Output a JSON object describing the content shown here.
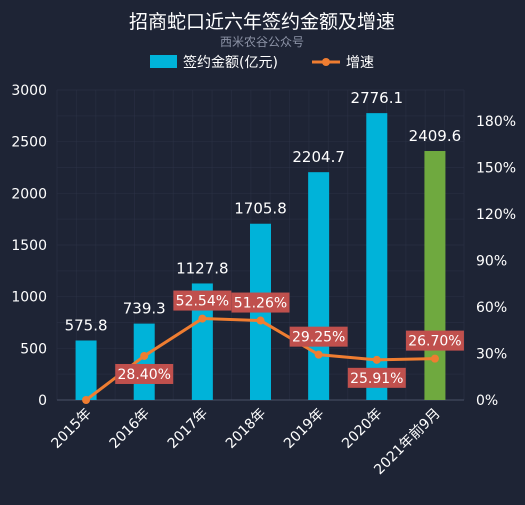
{
  "chart_data": {
    "type": "bar",
    "title": "招商蛇口近六年签约金额及增速",
    "subtitle": "西米农谷公众号",
    "categories": [
      "2015年",
      "2016年",
      "2017年",
      "2018年",
      "2019年",
      "2020年",
      "2021年前9月"
    ],
    "series": [
      {
        "name": "签约金额(亿元)",
        "type": "bar",
        "axis": "left",
        "values": [
          575.8,
          739.3,
          1127.8,
          1705.8,
          2204.7,
          2776.1,
          2409.6
        ],
        "value_labels": [
          "575.8",
          "739.3",
          "1127.8",
          "1705.8",
          "2204.7",
          "2776.1",
          "2409.6"
        ],
        "color": "#00b3d9",
        "highlight_color": "#6fa93f",
        "highlight_index": 6
      },
      {
        "name": "增速",
        "type": "line",
        "axis": "right",
        "values": [
          0,
          28.4,
          52.54,
          51.26,
          29.25,
          25.91,
          26.7
        ],
        "value_labels": [
          null,
          "28.40%",
          "52.54%",
          "51.26%",
          "29.25%",
          "25.91%",
          "26.70%"
        ],
        "color": "#ef7d31",
        "label_bg": "#c0504d"
      }
    ],
    "y_left": {
      "min": 0,
      "max": 3000,
      "ticks": [
        "0",
        "500",
        "1000",
        "1500",
        "2000",
        "2500",
        "3000"
      ]
    },
    "y_right": {
      "min": 0,
      "max": 200,
      "ticks": [
        "0%",
        "30%",
        "60%",
        "90%",
        "120%",
        "150%",
        "180%"
      ]
    },
    "grid": true,
    "legend_position": "top"
  }
}
